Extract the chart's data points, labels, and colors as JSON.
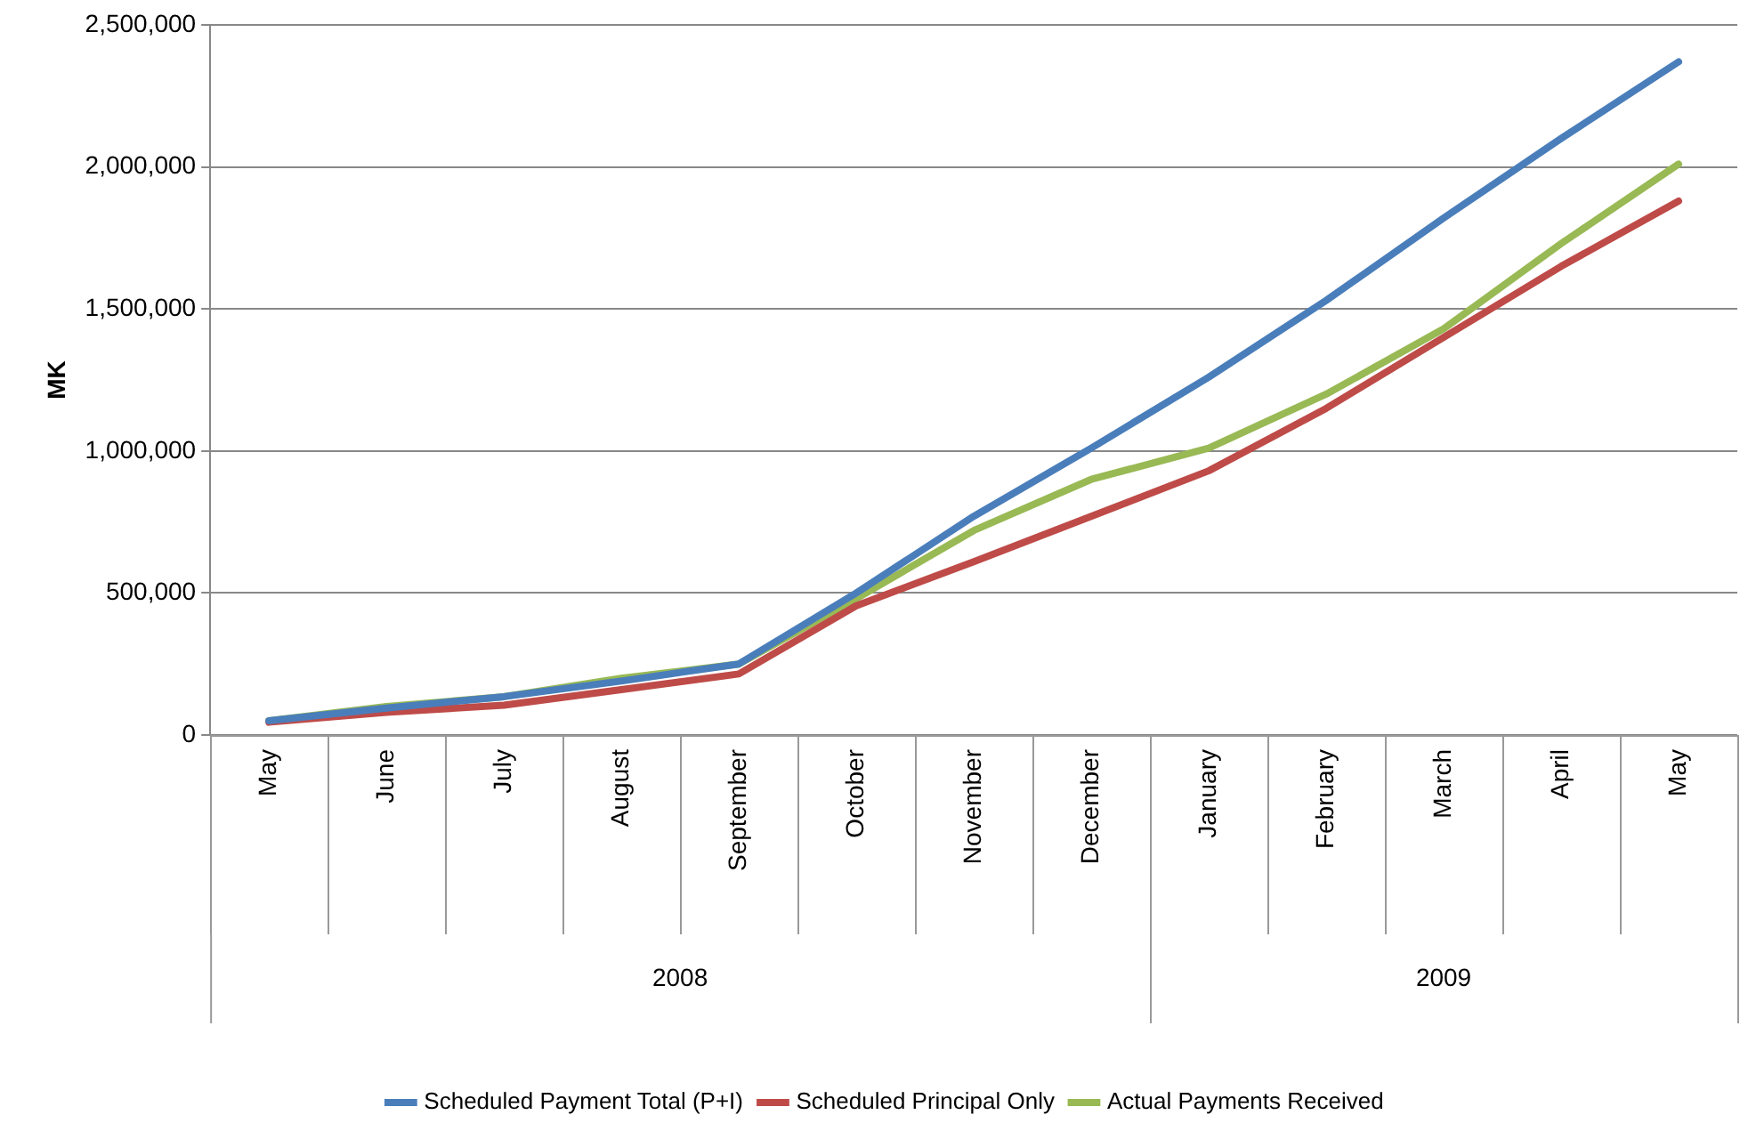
{
  "chart_data": {
    "type": "line",
    "ylabel": "MK",
    "categories": [
      "May",
      "June",
      "July",
      "August",
      "September",
      "October",
      "November",
      "December",
      "January",
      "February",
      "March",
      "April",
      "May"
    ],
    "series": [
      {
        "name": "Scheduled Payment Total (P+I)",
        "color": "#4a7ebb",
        "values": [
          50000,
          95000,
          135000,
          190000,
          250000,
          500000,
          770000,
          1010000,
          1260000,
          1530000,
          1820000,
          2100000,
          2370000
        ]
      },
      {
        "name": "Scheduled Principal Only",
        "color": "#be4b48",
        "values": [
          45000,
          80000,
          105000,
          160000,
          215000,
          455000,
          610000,
          770000,
          930000,
          1150000,
          1400000,
          1650000,
          1880000
        ]
      },
      {
        "name": "Actual Payments Received",
        "color": "#98b954",
        "values": [
          50000,
          100000,
          135000,
          200000,
          250000,
          480000,
          720000,
          900000,
          1010000,
          1200000,
          1430000,
          1730000,
          2010000
        ]
      }
    ],
    "ylim": [
      0,
      2500000
    ],
    "yticks": [
      0,
      {
        "value": 500000,
        "label": "500,000"
      },
      {
        "value": 1000000,
        "label": "1,000,000"
      },
      {
        "value": 1500000,
        "label": "1,500,000"
      },
      {
        "value": 2000000,
        "label": "2,000,000"
      },
      {
        "value": 2500000,
        "label": "2,500,000"
      }
    ],
    "annotations": [
      "2008",
      "2009"
    ],
    "grid": "y",
    "legend": "bottom",
    "marker": "none",
    "line_style": "solid"
  }
}
